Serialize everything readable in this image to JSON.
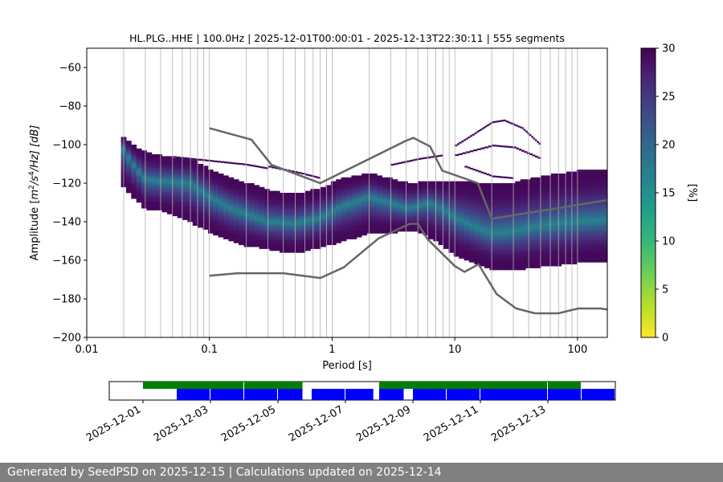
{
  "footer": {
    "text": "Generated by SeedPSD on 2025-12-15 | Calculations updated on 2025-12-14"
  },
  "colors": {
    "colormap": [
      "#440154",
      "#482878",
      "#3e4989",
      "#31688e",
      "#26828e",
      "#1f9e89",
      "#35b779",
      "#6ece58",
      "#b5de2b",
      "#fde725"
    ],
    "model_line": "#666666",
    "availability_top": "#008000",
    "availability_bottom": "#0000ff"
  },
  "chart_data": [
    {
      "type": "heatmap",
      "title": "HL.PLG..HHE | 100.0Hz | 2025-12-01T00:00:01 - 2025-12-13T22:30:11 | 555 segments",
      "xlabel": "Period [s]",
      "ylabel_parts": {
        "pre": "Amplitude [",
        "m": "m",
        "sup1": "2",
        "mid": "/s",
        "sup2": "4",
        "post": "/Hz] [dB]"
      },
      "x_scale": "log",
      "xlim": [
        0.01,
        175
      ],
      "ylim": [
        -200,
        -50
      ],
      "x_ticks": [
        {
          "value": 0.01,
          "label": "0.01"
        },
        {
          "value": 0.1,
          "label": "0.1"
        },
        {
          "value": 1,
          "label": "1"
        },
        {
          "value": 10,
          "label": "10"
        },
        {
          "value": 100,
          "label": "100"
        }
      ],
      "y_ticks": [
        {
          "value": -60,
          "label": "−60"
        },
        {
          "value": -80,
          "label": "−80"
        },
        {
          "value": -100,
          "label": "−100"
        },
        {
          "value": -120,
          "label": "−120"
        },
        {
          "value": -140,
          "label": "−140"
        },
        {
          "value": -160,
          "label": "−160"
        },
        {
          "value": -180,
          "label": "−180"
        },
        {
          "value": -200,
          "label": "−200"
        }
      ],
      "grid_periods": [
        0.02,
        0.03,
        0.04,
        0.05,
        0.06,
        0.07,
        0.08,
        0.09,
        0.1,
        0.2,
        0.3,
        0.4,
        0.5,
        0.6,
        0.7,
        0.8,
        0.9,
        1,
        2,
        3,
        4,
        5,
        6,
        7,
        8,
        9,
        10,
        20,
        30,
        40,
        50,
        60,
        70,
        80,
        90,
        100
      ],
      "psd_band": [
        {
          "period": 0.019,
          "mode": -100,
          "low": -120,
          "high": -95
        },
        {
          "period": 0.025,
          "mode": -112,
          "low": -128,
          "high": -101
        },
        {
          "period": 0.03,
          "mode": -118,
          "low": -133,
          "high": -104
        },
        {
          "period": 0.04,
          "mode": -119,
          "low": -134,
          "high": -106
        },
        {
          "period": 0.05,
          "mode": -119,
          "low": -136,
          "high": -107
        },
        {
          "period": 0.07,
          "mode": -120,
          "low": -140,
          "high": -107
        },
        {
          "period": 0.1,
          "mode": -127,
          "low": -145,
          "high": -113
        },
        {
          "period": 0.15,
          "mode": -133,
          "low": -150,
          "high": -118
        },
        {
          "period": 0.2,
          "mode": -136,
          "low": -152,
          "high": -120
        },
        {
          "period": 0.3,
          "mode": -140,
          "low": -154,
          "high": -124
        },
        {
          "period": 0.5,
          "mode": -141,
          "low": -156,
          "high": -126
        },
        {
          "period": 0.8,
          "mode": -138,
          "low": -153,
          "high": -123
        },
        {
          "period": 1.2,
          "mode": -132,
          "low": -150,
          "high": -118
        },
        {
          "period": 2,
          "mode": -127,
          "low": -146,
          "high": -115
        },
        {
          "period": 3,
          "mode": -130,
          "low": -146,
          "high": -118
        },
        {
          "period": 4,
          "mode": -133,
          "low": -144,
          "high": -120
        },
        {
          "period": 5,
          "mode": -132,
          "low": -145,
          "high": -120
        },
        {
          "period": 6,
          "mode": -130,
          "low": -147,
          "high": -119
        },
        {
          "period": 8,
          "mode": -133,
          "low": -152,
          "high": -119
        },
        {
          "period": 10,
          "mode": -138,
          "low": -157,
          "high": -119
        },
        {
          "period": 15,
          "mode": -143,
          "low": -161,
          "high": -120
        },
        {
          "period": 20,
          "mode": -146,
          "low": -164,
          "high": -121
        },
        {
          "period": 30,
          "mode": -145,
          "low": -165,
          "high": -120
        },
        {
          "period": 50,
          "mode": -142,
          "low": -163,
          "high": -117
        },
        {
          "period": 100,
          "mode": -140,
          "low": -161,
          "high": -114
        },
        {
          "period": 175,
          "mode": -139,
          "low": -160,
          "high": -113
        }
      ],
      "sparse_arcs": [
        {
          "points": [
            [
              0.05,
              -107
            ],
            [
              0.1,
              -109
            ],
            [
              0.2,
              -111
            ],
            [
              0.3,
              -113
            ]
          ]
        },
        {
          "points": [
            [
              0.3,
              -112
            ],
            [
              0.6,
              -116
            ],
            [
              0.8,
              -118
            ]
          ]
        },
        {
          "points": [
            [
              3,
              -111
            ],
            [
              5,
              -108
            ],
            [
              8,
              -106
            ]
          ]
        },
        {
          "points": [
            [
              10,
              -106
            ],
            [
              20,
              -101
            ],
            [
              30,
              -102
            ],
            [
              50,
              -108
            ]
          ]
        },
        {
          "points": [
            [
              10,
              -101
            ],
            [
              15,
              -94
            ],
            [
              20,
              -89
            ],
            [
              25,
              -88
            ],
            [
              35,
              -92
            ],
            [
              50,
              -101
            ]
          ]
        },
        {
          "points": [
            [
              12,
              -112
            ],
            [
              20,
              -117
            ],
            [
              30,
              -118
            ]
          ]
        }
      ],
      "noise_models": [
        {
          "points": [
            [
              0.1,
              -91.5
            ],
            [
              0.22,
              -97.4
            ],
            [
              0.32,
              -110.5
            ],
            [
              0.8,
              -120
            ],
            [
              4.0,
              -98.0
            ],
            [
              4.6,
              -96.5
            ],
            [
              6.3,
              -101
            ],
            [
              7.9,
              -113.5
            ],
            [
              15.4,
              -120
            ],
            [
              20,
              -138.5
            ],
            [
              175,
              -128.8
            ]
          ]
        },
        {
          "points": [
            [
              0.1,
              -168
            ],
            [
              0.17,
              -166.7
            ],
            [
              0.4,
              -166.7
            ],
            [
              0.8,
              -169.2
            ],
            [
              1.24,
              -163.7
            ],
            [
              2.4,
              -148.6
            ],
            [
              4.3,
              -141.1
            ],
            [
              5.0,
              -141.1
            ],
            [
              6.0,
              -149.1
            ],
            [
              10,
              -163
            ],
            [
              12,
              -166
            ],
            [
              15.6,
              -162.1
            ],
            [
              21.9,
              -177.5
            ],
            [
              31.6,
              -185
            ],
            [
              45,
              -187.5
            ],
            [
              70,
              -187.5
            ],
            [
              101,
              -185
            ],
            [
              154,
              -185
            ],
            [
              175,
              -185.5
            ]
          ]
        }
      ]
    },
    {
      "type": "heatmap_colorbar",
      "label": "[%]",
      "range": [
        0,
        30
      ],
      "ticks": [
        {
          "value": 0,
          "label": "0"
        },
        {
          "value": 5,
          "label": "5"
        },
        {
          "value": 10,
          "label": "10"
        },
        {
          "value": 15,
          "label": "15"
        },
        {
          "value": 20,
          "label": "20"
        },
        {
          "value": 25,
          "label": "25"
        },
        {
          "value": 30,
          "label": "30"
        }
      ]
    },
    {
      "type": "timeline",
      "xlim_days": [
        "2025-11-30",
        "2025-12-15"
      ],
      "date_ticks": [
        "2025-12-01",
        "2025-12-03",
        "2025-12-05",
        "2025-12-07",
        "2025-12-09",
        "2025-12-11",
        "2025-12-13"
      ],
      "top_segments": [
        [
          "2025-12-01",
          "2025-12-04"
        ],
        [
          "2025-12-04",
          "2025-12-05.75"
        ],
        [
          "2025-12-08",
          "2025-12-13"
        ],
        [
          "2025-12-13",
          "2025-12-14"
        ]
      ],
      "bottom_segments": [
        [
          "2025-12-02",
          "2025-12-03"
        ],
        [
          "2025-12-03",
          "2025-12-04"
        ],
        [
          "2025-12-04",
          "2025-12-05"
        ],
        [
          "2025-12-05",
          "2025-12-05.75"
        ],
        [
          "2025-12-06",
          "2025-12-07"
        ],
        [
          "2025-12-07",
          "2025-12-07.85"
        ],
        [
          "2025-12-08",
          "2025-12-08.75"
        ],
        [
          "2025-12-09",
          "2025-12-10"
        ],
        [
          "2025-12-10",
          "2025-12-11"
        ],
        [
          "2025-12-11",
          "2025-12-13"
        ],
        [
          "2025-12-13",
          "2025-12-14"
        ],
        [
          "2025-12-14",
          "2025-12-15"
        ]
      ]
    }
  ]
}
